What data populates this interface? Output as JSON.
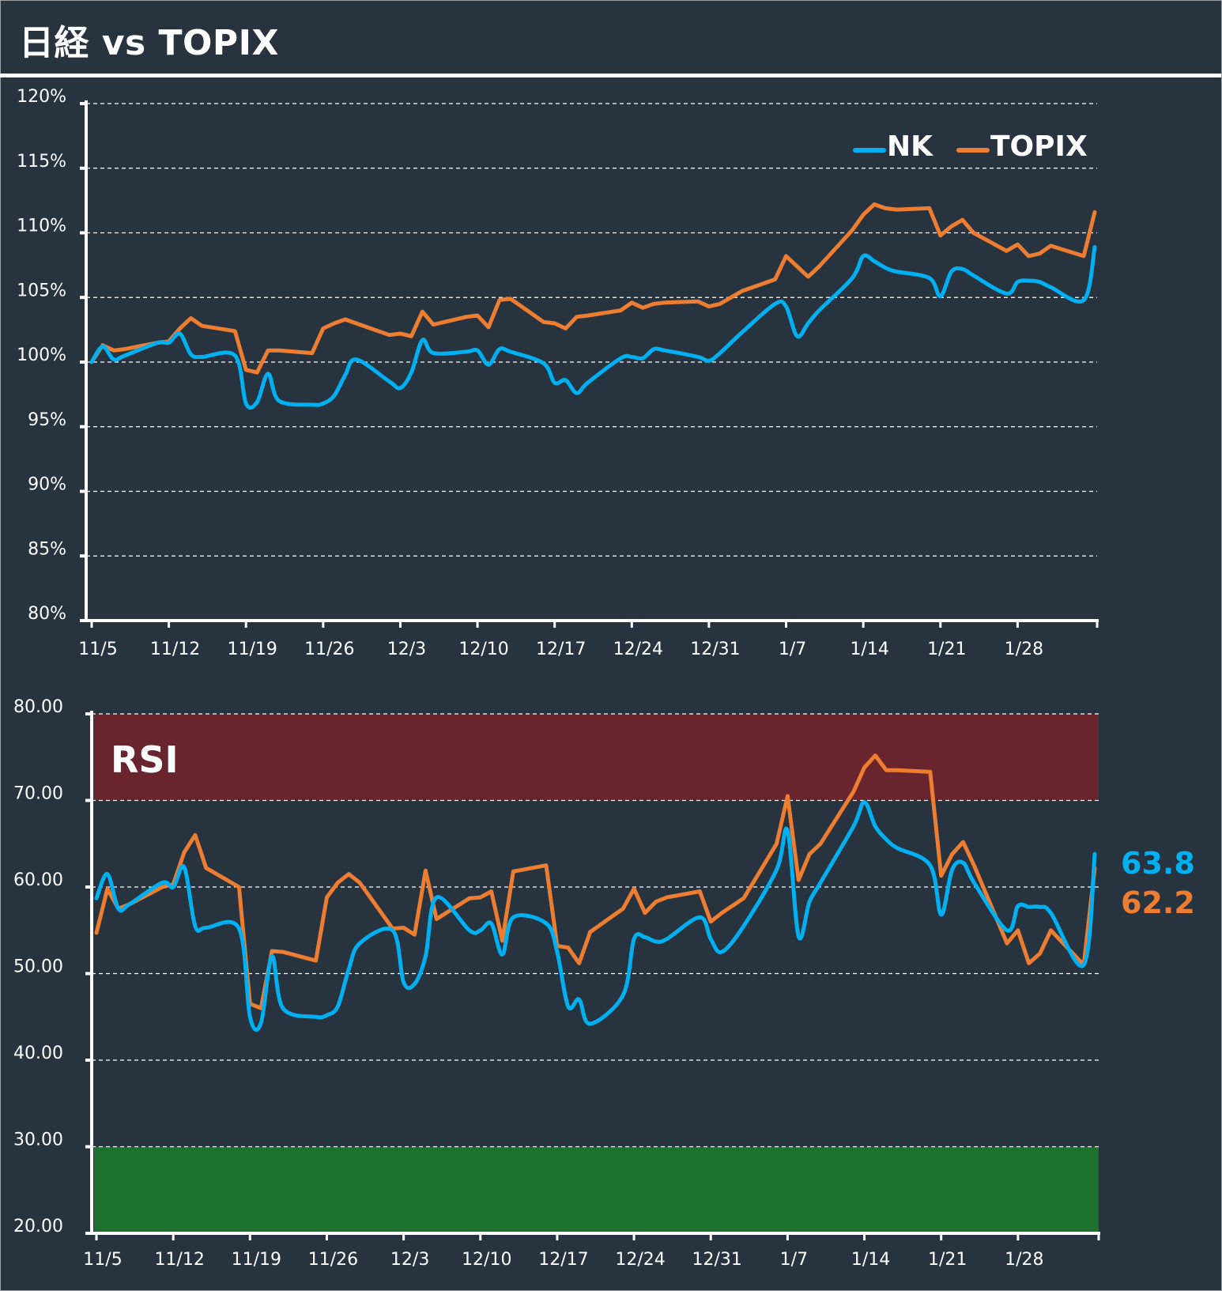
{
  "header": {
    "title": "日経 vs TOPIX"
  },
  "colors": {
    "background": "#27333e",
    "nk": "#00b0f0",
    "topix": "#ed7d31",
    "overbought": "#6a242e",
    "oversold": "#1c722c",
    "overbought_line": "#f4511e"
  },
  "chart_data": [
    {
      "type": "line",
      "title": "",
      "ylabel": "",
      "xlabel": "",
      "ylim": [
        80,
        120
      ],
      "yticks": [
        "120%",
        "115%",
        "110%",
        "105%",
        "100%",
        "95%",
        "90%",
        "85%",
        "80%"
      ],
      "ytick_values": [
        120,
        115,
        110,
        105,
        100,
        95,
        90,
        85,
        80
      ],
      "xticks": [
        "11/5",
        "11/12",
        "11/19",
        "11/26",
        "12/3",
        "12/10",
        "12/17",
        "12/24",
        "12/31",
        "1/7",
        "1/14",
        "1/21",
        "1/28"
      ],
      "xlim_days": [
        0,
        91
      ],
      "grid": true,
      "legend": {
        "position": "top-right",
        "entries": [
          "NK",
          "TOPIX"
        ]
      },
      "x_days": [
        0,
        1,
        2,
        3,
        6,
        7,
        8,
        9,
        10,
        13,
        14,
        15,
        16,
        17,
        20,
        21,
        22,
        23,
        24,
        27,
        28,
        29,
        30,
        31,
        34,
        35,
        36,
        37,
        38,
        41,
        42,
        43,
        44,
        45,
        48,
        49,
        50,
        51,
        52,
        55,
        56,
        57,
        59,
        62,
        63,
        64,
        65,
        66,
        69,
        70,
        71,
        72,
        73,
        76,
        77,
        78,
        79,
        80,
        83,
        84,
        85,
        86,
        87,
        90,
        91
      ],
      "series": [
        {
          "name": "NK",
          "values": [
            100.0,
            101.2,
            100.2,
            100.5,
            101.5,
            101.5,
            102.2,
            100.6,
            100.4,
            100.5,
            96.8,
            96.9,
            99.1,
            97.0,
            96.7,
            96.8,
            97.4,
            99.0,
            100.2,
            98.5,
            98.0,
            99.2,
            101.7,
            100.7,
            100.8,
            100.9,
            99.8,
            101.0,
            100.8,
            99.9,
            98.4,
            98.6,
            97.6,
            98.4,
            100.3,
            100.4,
            100.3,
            101.0,
            100.9,
            100.4,
            100.1,
            100.7,
            102.3,
            104.5,
            104.3,
            102.0,
            103.0,
            104.0,
            106.5,
            108.2,
            107.8,
            107.3,
            107.0,
            106.5,
            105.1,
            107.0,
            107.2,
            106.7,
            105.3,
            106.2,
            106.3,
            106.2,
            105.8,
            104.8,
            108.9
          ]
        },
        {
          "name": "TOPIX",
          "values": [
            100.0,
            101.3,
            100.9,
            101.0,
            101.5,
            101.6,
            102.6,
            103.4,
            102.8,
            102.4,
            99.4,
            99.2,
            100.9,
            100.9,
            100.7,
            102.6,
            103.0,
            103.3,
            103.0,
            102.1,
            102.2,
            102.0,
            103.9,
            102.9,
            103.5,
            103.6,
            102.7,
            104.8,
            104.9,
            103.1,
            103.0,
            102.6,
            103.5,
            103.6,
            104.0,
            104.6,
            104.2,
            104.5,
            104.6,
            104.7,
            104.3,
            104.5,
            105.5,
            106.4,
            108.2,
            107.4,
            106.6,
            107.4,
            110.2,
            111.4,
            112.2,
            111.9,
            111.8,
            111.9,
            109.8,
            110.5,
            111.0,
            110.0,
            108.6,
            109.1,
            108.2,
            108.4,
            109.0,
            108.2,
            111.6
          ]
        }
      ]
    },
    {
      "type": "line",
      "title": "RSI",
      "ylim": [
        20,
        80
      ],
      "yticks": [
        "80.00",
        "70.00",
        "60.00",
        "50.00",
        "40.00",
        "30.00",
        "20.00"
      ],
      "ytick_values": [
        80,
        70,
        60,
        50,
        40,
        30,
        20
      ],
      "xticks": [
        "11/5",
        "11/12",
        "11/19",
        "11/26",
        "12/3",
        "12/10",
        "12/17",
        "12/24",
        "12/31",
        "1/7",
        "1/14",
        "1/21",
        "1/28"
      ],
      "xlim_days": [
        0,
        91
      ],
      "grid": true,
      "bands": [
        {
          "name": "overbought",
          "from": 70,
          "to": 80
        },
        {
          "name": "oversold",
          "from": 20,
          "to": 30
        }
      ],
      "x_days": [
        0,
        1,
        2,
        3,
        6,
        7,
        8,
        9,
        10,
        13,
        14,
        15,
        16,
        17,
        20,
        21,
        22,
        23,
        24,
        27,
        28,
        29,
        30,
        31,
        34,
        35,
        36,
        37,
        38,
        41,
        42,
        43,
        44,
        45,
        48,
        49,
        50,
        51,
        52,
        55,
        56,
        57,
        59,
        62,
        63,
        64,
        65,
        66,
        69,
        70,
        71,
        72,
        73,
        76,
        77,
        78,
        79,
        80,
        83,
        84,
        85,
        86,
        87,
        90,
        91
      ],
      "series": [
        {
          "name": "NK",
          "values": [
            58.7,
            61.5,
            57.5,
            58.0,
            60.5,
            60.0,
            62.3,
            55.5,
            55.3,
            55.2,
            45.0,
            44.3,
            52.0,
            46.0,
            45.0,
            45.2,
            46.2,
            50.5,
            53.5,
            55.0,
            49.0,
            48.8,
            52.0,
            58.8,
            55.0,
            55.0,
            55.8,
            52.2,
            56.5,
            55.8,
            52.5,
            46.2,
            47.0,
            44.2,
            47.5,
            54.0,
            54.2,
            53.7,
            54.0,
            56.5,
            54.0,
            52.5,
            55.5,
            62.0,
            66.5,
            54.3,
            58.3,
            60.5,
            67.0,
            69.8,
            67.0,
            65.5,
            64.5,
            62.5,
            56.8,
            62.0,
            62.8,
            60.5,
            55.0,
            57.8,
            57.7,
            57.7,
            57.0,
            51.0,
            63.8
          ]
        },
        {
          "name": "TOPIX",
          "values": [
            54.7,
            59.8,
            57.5,
            58.0,
            60.0,
            60.3,
            64.0,
            66.0,
            62.2,
            60.0,
            46.5,
            46.0,
            52.6,
            52.5,
            51.5,
            58.8,
            60.5,
            61.5,
            60.5,
            55.2,
            55.3,
            54.5,
            61.9,
            56.3,
            58.7,
            58.8,
            59.5,
            53.8,
            61.8,
            62.5,
            53.2,
            53.0,
            51.2,
            54.8,
            57.5,
            59.8,
            57.0,
            58.3,
            58.8,
            59.5,
            56.0,
            57.0,
            58.7,
            65.0,
            70.5,
            60.8,
            63.8,
            65.0,
            71.0,
            73.8,
            75.2,
            73.5,
            73.5,
            73.3,
            61.3,
            63.8,
            65.2,
            62.5,
            53.5,
            55.0,
            51.2,
            52.3,
            55.0,
            51.0,
            62.2
          ]
        }
      ],
      "last_values": {
        "NK": "63.8",
        "TOPIX": "62.2"
      }
    }
  ]
}
